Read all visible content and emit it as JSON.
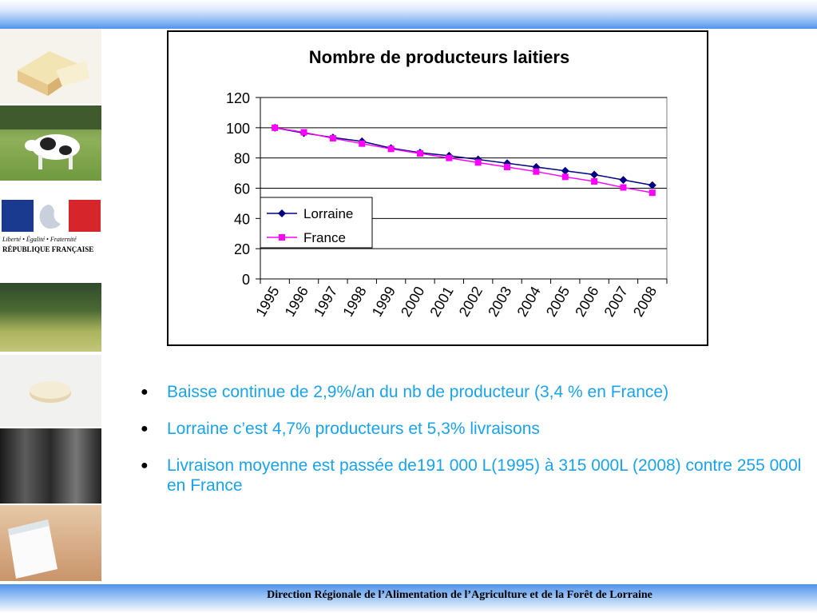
{
  "footer": {
    "text": "Direction Régionale de l’Alimentation de l’Agriculture et de la Forêt de Lorraine"
  },
  "sidebar": {
    "emblem": {
      "motto": "Liberté • Égalité • Fraternité",
      "name": "RÉPUBLIQUE FRANÇAISE"
    }
  },
  "bullets": [
    "Baisse continue de 2,9%/an du nb de producteur (3,4 % en France)",
    "Lorraine c’est 4,7% producteurs et 5,3% livraisons",
    "Livraison moyenne est passée de191 000 L(1995) à 315 000L (2008) contre 255 000l en France"
  ],
  "chart_data": {
    "type": "line",
    "title": "Nombre de producteurs laitiers",
    "categories": [
      "1995",
      "1996",
      "1997",
      "1998",
      "1999",
      "2000",
      "2001",
      "2002",
      "2003",
      "2004",
      "2005",
      "2006",
      "2007",
      "2008"
    ],
    "series": [
      {
        "name": "Lorraine",
        "color": "#000080",
        "marker": "diamond",
        "values": [
          100,
          96.5,
          93.5,
          91,
          86.5,
          83.5,
          81.5,
          79,
          76.5,
          74,
          71.5,
          69,
          65.5,
          62
        ]
      },
      {
        "name": "France",
        "color": "#ff00ff",
        "marker": "square",
        "values": [
          100,
          97,
          93,
          89.5,
          86,
          83,
          80,
          77,
          74,
          71,
          67.5,
          64.5,
          60.5,
          57
        ]
      }
    ],
    "yticks": [
      0,
      20,
      40,
      60,
      80,
      100,
      120
    ],
    "ylim": [
      0,
      120
    ],
    "grid": true,
    "legend": "left-middle"
  }
}
